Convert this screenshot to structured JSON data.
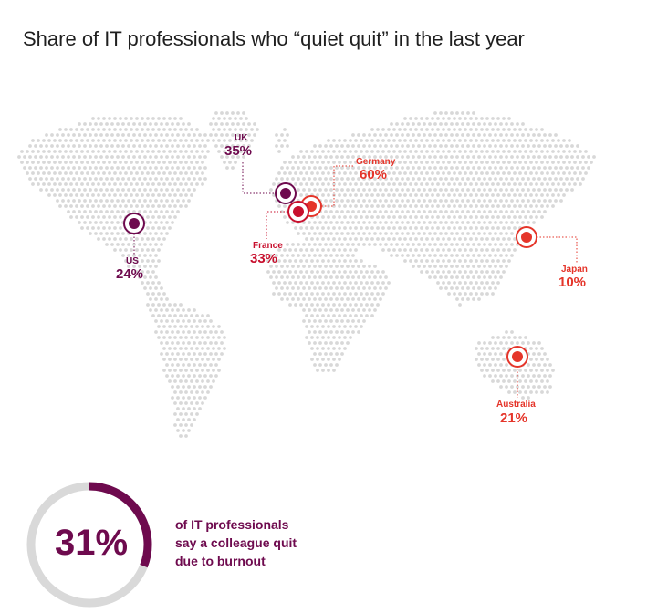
{
  "title": "Share of IT professionals who “quiet quit” in the last year",
  "colors": {
    "purple": "#6e0a4e",
    "red": "#e5352a",
    "crimson": "#c8102e",
    "dots": "#d8d8d8",
    "ring": "#d9d9d9"
  },
  "chart_data": [
    {
      "type": "map",
      "title": "Share of IT professionals who “quiet quit” in the last year",
      "series": [
        {
          "name": "UK",
          "value": 35,
          "label": "35%"
        },
        {
          "name": "Germany",
          "value": 60,
          "label": "60%"
        },
        {
          "name": "France",
          "value": 33,
          "label": "33%"
        },
        {
          "name": "US",
          "value": 24,
          "label": "24%"
        },
        {
          "name": "Japan",
          "value": 10,
          "label": "10%"
        },
        {
          "name": "Australia",
          "value": 21,
          "label": "21%"
        }
      ]
    },
    {
      "type": "pie",
      "value": 31,
      "value_label": "31%",
      "caption_lines": [
        "of IT professionals",
        "say a colleague quit",
        "due to burnout"
      ]
    }
  ]
}
